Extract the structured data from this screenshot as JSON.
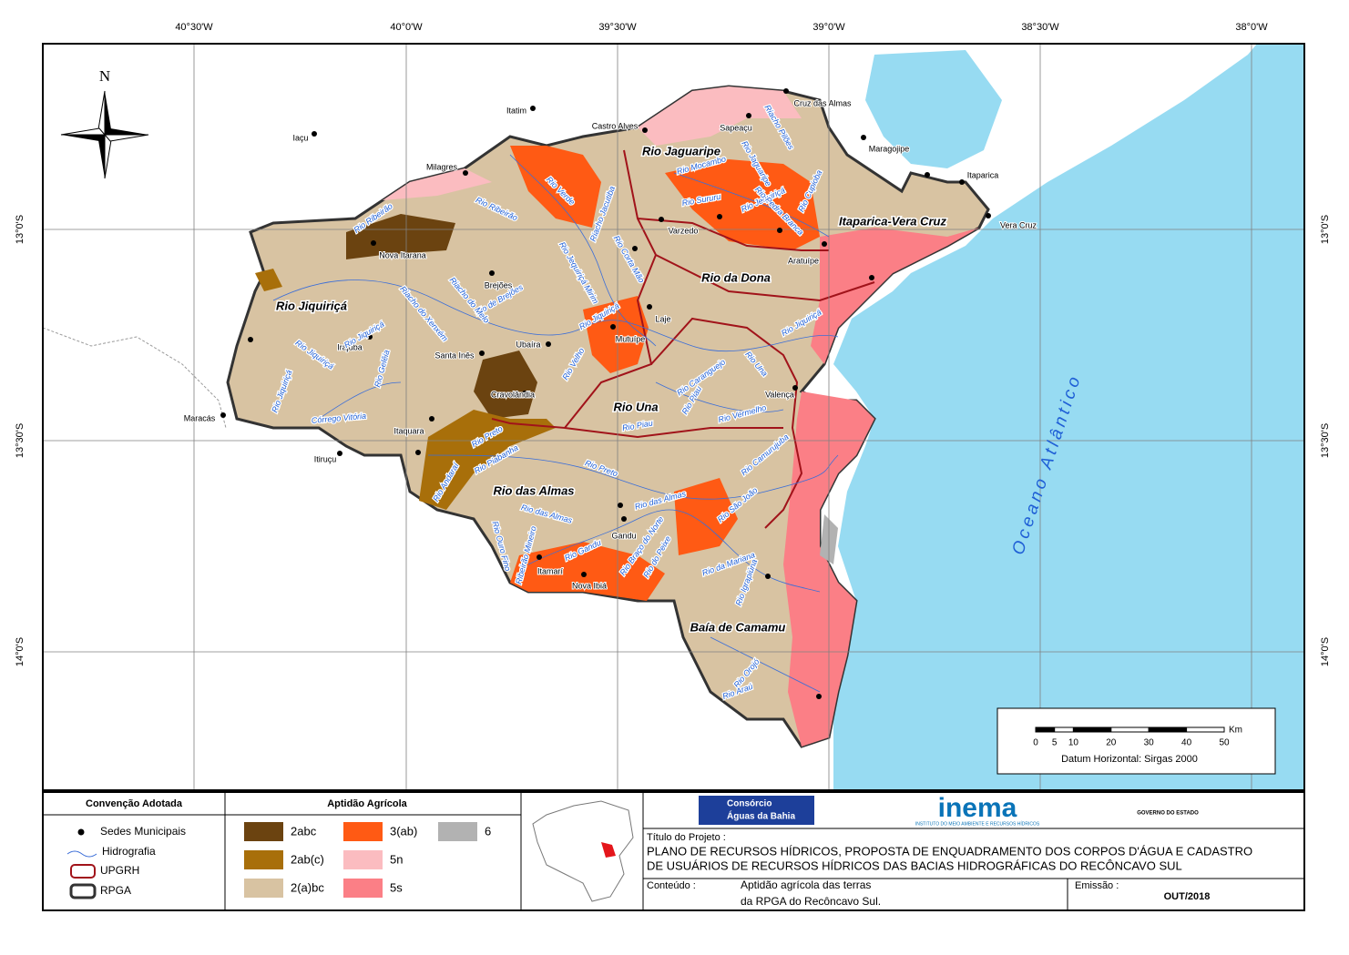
{
  "map": {
    "lon_labels": [
      "40°30'W",
      "40°0'W",
      "39°30'W",
      "39°0'W",
      "38°30'W",
      "38°0'W"
    ],
    "lat_labels": [
      "13°0'S",
      "13°30'S",
      "14°0'S"
    ],
    "compass": "N",
    "places": [
      "Iaçu",
      "Itatim",
      "Castro Alves",
      "Cruz das Almas",
      "Sapeaçu",
      "Maragojipe",
      "Milagres",
      "Itaparica",
      "Vera Cruz",
      "Varzedo",
      "Nova Itarana",
      "Aratuípe",
      "Brejões",
      "Laje",
      "Mutuípe",
      "Irajuba",
      "Ubaíra",
      "Santa Inês",
      "Cravolândia",
      "Valença",
      "Maracás",
      "Itaquara",
      "Itiruçu",
      "Gandu",
      "Itamarí",
      "Nova Ibiá"
    ],
    "regions": [
      "Rio Jaguaripe",
      "Itaparica-Vera Cruz",
      "Rio da Dona",
      "Rio Jiquiriçá",
      "Rio Una",
      "Rio das Almas",
      "Baía de Camamu"
    ],
    "rivers": [
      "Rio Verde",
      "Riacho Jacutiba",
      "Rio Jequiriçá Mirim",
      "Rio Corta Mão",
      "Rio de Brejões",
      "Riacho do Xenxém",
      "Riacho do Melo",
      "Rio Jiquiriçá",
      "Rio Jiquiriçá",
      "Rio Jiquiriçá",
      "Rio Gelêia",
      "Córrego Vitória",
      "Rio Preto",
      "Rio Piabanha",
      "Rio Andaraí",
      "Rio Preto",
      "Rio das Almas",
      "Rio das Almas",
      "Rio Ouro Fino",
      "Ribeirão Mineiro",
      "Rio Gandu",
      "Rio Braço do Norte",
      "Rio do Peixe",
      "Rio Mocambo",
      "Rio Jaguaripe",
      "Rio Sururu",
      "Rio Jequiriçá",
      "Riacho Pilões",
      "Rio Cupioba",
      "Rio Pedra Branca",
      "Rio Una",
      "Rio Caranguejo",
      "Rio Piau",
      "Rio Piau",
      "Rio Vermelho",
      "Rio Camurujuba",
      "Rio São João",
      "Rio da Mariana",
      "Rio Igrapiúna",
      "Rio Orojó",
      "Rio Araú",
      "Rio Jiquiriçá",
      "Rio Velho",
      "Rio Jiquiriçá",
      "Rio Ribeirão",
      "Rio Ribeirão"
    ],
    "ocean_label": "Oceano Atlântico",
    "scale_bar": {
      "ticks": [
        0,
        5,
        10,
        20,
        30,
        40,
        50
      ],
      "unit": "Km",
      "datum": "Datum Horizontal: Sirgas 2000"
    }
  },
  "legend": {
    "convention_title": "Convenção Adotada",
    "convention_items": [
      "Sedes Municipais",
      "Hidrografia",
      "UPGRH",
      "RPGA"
    ],
    "aptitude_title": "Aptidão Agrícola",
    "classes": [
      {
        "name": "2abc",
        "color": "#6b4310"
      },
      {
        "name": "2ab(c)",
        "color": "#a86f0a"
      },
      {
        "name": "2(a)bc",
        "color": "#d8c3a2"
      },
      {
        "name": "3(ab)",
        "color": "#ff5a14"
      },
      {
        "name": "5n",
        "color": "#fbbcc0"
      },
      {
        "name": "5s",
        "color": "#fb7f86"
      },
      {
        "name": "6",
        "color": "#b2b2b2"
      }
    ]
  },
  "footer": {
    "logo_1": [
      "Consórcio",
      "Águas da Bahia"
    ],
    "logo_2": "inema",
    "logo_2_sub": "INSTITUTO DO MEIO AMBIENTE E RECURSOS HÍDRICOS",
    "logo_3": "GOVERNO DO ESTADO",
    "project_label": "Título do Projeto :",
    "project_title": [
      "PLANO DE RECURSOS HÍDRICOS, PROPOSTA DE ENQUADRAMENTO DOS CORPOS D'ÁGUA E CADASTRO",
      "DE USUÁRIOS DE RECURSOS HÍDRICOS DAS BACIAS HIDROGRÁFICAS DO RECÔNCAVO SUL"
    ],
    "content_label": "Conteúdo :",
    "content": [
      "Aptidão agrícola das terras",
      "da RPGA do Recôncavo Sul."
    ],
    "issue_label": "Emissão :",
    "issue": "OUT/2018"
  }
}
